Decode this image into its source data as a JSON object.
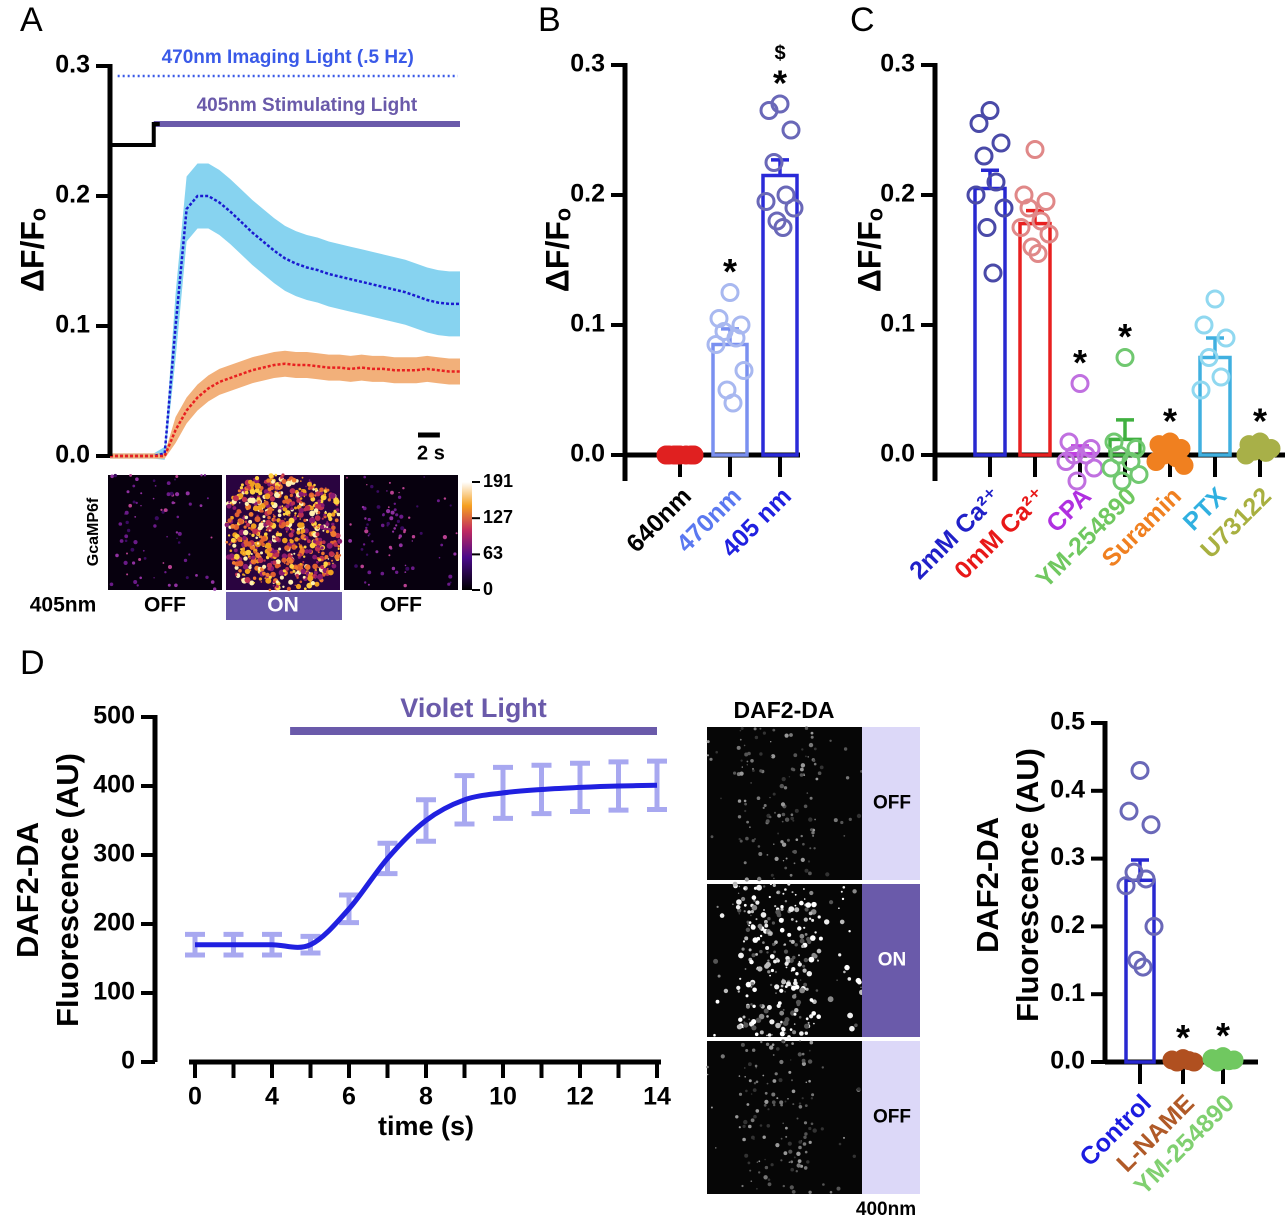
{
  "chart_data": [
    {
      "type": "line",
      "panel": "A",
      "ylabel": "ΔF/Fₒ",
      "xlim": [
        0,
        32
      ],
      "ylim": [
        0,
        0.3
      ],
      "yticks": [
        {
          "value": 0,
          "label": "0.0"
        },
        {
          "value": 0.1,
          "label": "0.1"
        },
        {
          "value": 0.2,
          "label": "0.2"
        },
        {
          "value": 0.3,
          "label": "0.3"
        }
      ],
      "x": [
        0,
        1,
        2,
        3,
        4,
        5,
        6,
        7,
        8,
        9,
        10,
        11,
        12,
        13,
        14,
        15,
        16,
        17,
        18,
        19,
        20,
        21,
        22,
        23,
        24,
        25,
        26,
        27,
        28,
        29,
        30,
        31,
        32
      ],
      "series": [
        {
          "color": "#1a1ad0",
          "band_color": "#87d3f0",
          "values": [
            0,
            0,
            0,
            0,
            0,
            0.002,
            0.1,
            0.19,
            0.2,
            0.2,
            0.195,
            0.188,
            0.18,
            0.172,
            0.165,
            0.158,
            0.152,
            0.148,
            0.145,
            0.143,
            0.14,
            0.138,
            0.136,
            0.134,
            0.132,
            0.13,
            0.128,
            0.126,
            0.123,
            0.12,
            0.118,
            0.117,
            0.117
          ],
          "errors": [
            0.002,
            0.002,
            0.002,
            0.002,
            0.002,
            0.005,
            0.025,
            0.025,
            0.025,
            0.025,
            0.025,
            0.025,
            0.025,
            0.025,
            0.025,
            0.025,
            0.025,
            0.025,
            0.025,
            0.025,
            0.025,
            0.025,
            0.025,
            0.025,
            0.025,
            0.025,
            0.025,
            0.025,
            0.025,
            0.025,
            0.025,
            0.025,
            0.025
          ]
        },
        {
          "color": "#e82020",
          "band_color": "#f2b07a",
          "values": [
            0,
            0,
            0,
            0,
            0,
            0,
            0.02,
            0.035,
            0.045,
            0.052,
            0.057,
            0.06,
            0.063,
            0.066,
            0.068,
            0.07,
            0.071,
            0.07,
            0.07,
            0.069,
            0.068,
            0.068,
            0.067,
            0.068,
            0.067,
            0.067,
            0.066,
            0.066,
            0.066,
            0.067,
            0.066,
            0.065,
            0.065
          ],
          "errors": [
            0.002,
            0.002,
            0.002,
            0.002,
            0.002,
            0.002,
            0.01,
            0.01,
            0.01,
            0.01,
            0.01,
            0.01,
            0.01,
            0.01,
            0.01,
            0.01,
            0.01,
            0.01,
            0.01,
            0.01,
            0.01,
            0.01,
            0.01,
            0.01,
            0.01,
            0.01,
            0.01,
            0.01,
            0.01,
            0.01,
            0.01,
            0.01,
            0.01
          ]
        }
      ],
      "lights": [
        {
          "label": "470nm Imaging Light (.5 Hz)",
          "color": "#3a5ae8",
          "start": 0.7,
          "end": 31.8
        },
        {
          "label": "405nm Stimulating Light",
          "color": "#6a5aaa",
          "start": 4,
          "end": 32
        }
      ],
      "scale_bar": {
        "length": 2,
        "label": "2 s"
      },
      "images": {
        "label": "GcaMP6f",
        "row_label": "405nm",
        "states": [
          "OFF",
          "ON",
          "OFF"
        ],
        "on_color": "#6a5aaa",
        "colorbar_lim": [
          0,
          191
        ],
        "colorbar_ticks": [
          191,
          127,
          63,
          0
        ]
      }
    },
    {
      "type": "bar",
      "panel": "B",
      "ylabel": "ΔF/Fₒ",
      "ylim": [
        -0.02,
        0.3
      ],
      "yticks": [
        {
          "value": 0,
          "label": "0.0"
        },
        {
          "value": 0.1,
          "label": "0.1"
        },
        {
          "value": 0.2,
          "label": "0.2"
        },
        {
          "value": 0.3,
          "label": "0.3"
        }
      ],
      "categories": [
        "640nm",
        "470nm",
        "405 nm"
      ],
      "values": [
        0,
        0.085,
        0.215
      ],
      "errors": [
        0,
        0.012,
        0.012
      ],
      "colors": [
        "#e02020",
        "#7a90f0",
        "#2a2ad8"
      ],
      "point_colors": [
        "#e02020",
        "#a8b8f0",
        "#6a68b8"
      ],
      "label_colors": [
        "#000000",
        "#5a78f0",
        "#2020e0"
      ],
      "filled": [
        true,
        false,
        false
      ],
      "points": [
        [
          0,
          0,
          0,
          0,
          0,
          0,
          0,
          0
        ],
        [
          0.125,
          0.105,
          0.1,
          0.095,
          0.09,
          0.085,
          0.065,
          0.05,
          0.04
        ],
        [
          0.27,
          0.265,
          0.25,
          0.225,
          0.2,
          0.195,
          0.19,
          0.18,
          0.175
        ]
      ],
      "significance": [
        {
          "index": 1,
          "text": "*"
        },
        {
          "index": 2,
          "text": "*"
        },
        {
          "index": 2,
          "text": "$"
        }
      ]
    },
    {
      "type": "bar",
      "panel": "C",
      "ylabel": "ΔF/Fₒ",
      "ylim": [
        -0.02,
        0.3
      ],
      "yticks": [
        {
          "value": 0,
          "label": "0.0"
        },
        {
          "value": 0.1,
          "label": "0.1"
        },
        {
          "value": 0.2,
          "label": "0.2"
        },
        {
          "value": 0.3,
          "label": "0.3"
        }
      ],
      "categories": [
        "2mM Ca²⁺",
        "0mM Ca²⁺",
        "CPA",
        "YM-254890",
        "Suramin",
        "PTX",
        "U73122"
      ],
      "values": [
        0.205,
        0.178,
        0.001,
        0.012,
        0.004,
        0.075,
        0.005
      ],
      "errors": [
        0.014,
        0.01,
        0.006,
        0.015,
        0.004,
        0.015,
        0.002
      ],
      "colors": [
        "#2828d0",
        "#e82020",
        "#c040e0",
        "#40b040",
        "#f08020",
        "#40b0e0",
        "#a0a840"
      ],
      "point_colors": [
        "#4a4aa8",
        "#e08888",
        "#c070e0",
        "#70c870",
        "#f08020",
        "#90d8f0",
        "#a8b048"
      ],
      "label_colors": [
        "#2020c8",
        "#e81818",
        "#b030e0",
        "#70c860",
        "#f08020",
        "#30b0e0",
        "#a8b040"
      ],
      "filled": [
        false,
        false,
        false,
        false,
        true,
        false,
        true
      ],
      "points": [
        [
          0.265,
          0.255,
          0.24,
          0.23,
          0.21,
          0.2,
          0.19,
          0.175,
          0.14
        ],
        [
          0.235,
          0.2,
          0.195,
          0.19,
          0.18,
          0.175,
          0.17,
          0.16,
          0.155
        ],
        [
          0.055,
          0.01,
          0.005,
          0,
          0,
          -0.005,
          -0.01,
          -0.02
        ],
        [
          0.075,
          0.01,
          0.005,
          0,
          -0.005,
          -0.01,
          -0.015,
          -0.02
        ],
        [
          0.01,
          0.008,
          0.005,
          0,
          -0.002,
          -0.005,
          -0.008
        ],
        [
          0.12,
          0.1,
          0.09,
          0.075,
          0.06,
          0.05
        ],
        [
          0.01,
          0.008,
          0.005,
          0.003,
          0.002,
          0
        ]
      ],
      "significance": [
        {
          "index": 2,
          "text": "*"
        },
        {
          "index": 3,
          "text": "*"
        },
        {
          "index": 4,
          "text": "*"
        },
        {
          "index": 6,
          "text": "*"
        }
      ]
    },
    {
      "type": "line",
      "panel": "D",
      "ylabel": [
        "DAF2-DA",
        "Fluorescence (AU)"
      ],
      "xlabel": "time (s)",
      "ylim": [
        0,
        500
      ],
      "yticks": [
        0,
        100,
        200,
        300,
        400,
        500
      ],
      "categories": [
        "0",
        null,
        "4",
        null,
        "6",
        null,
        "8",
        null,
        "10",
        null,
        "12",
        null,
        "14"
      ],
      "values": [
        170,
        170,
        170,
        170,
        222,
        295,
        350,
        380,
        390,
        395,
        398,
        400,
        401
      ],
      "errors": [
        15,
        15,
        15,
        12,
        20,
        22,
        30,
        35,
        37,
        35,
        35,
        35,
        35
      ],
      "color": "#2020e0",
      "error_color": "#a8a8f0",
      "light": {
        "label": "Violet Light",
        "color": "#6a5aaa",
        "start": 2.47,
        "end": 12
      },
      "image_stack": {
        "title": "DAF2-DA",
        "states": [
          "OFF",
          "ON",
          "OFF"
        ],
        "wavelength": "400nm",
        "off_color": "#dcd8f8",
        "on_color": "#6a5aaa"
      }
    },
    {
      "type": "bar",
      "ylabel": [
        "DAF2-DA",
        "Fluorescence (AU)"
      ],
      "ylim": [
        0,
        0.5
      ],
      "yticks": [
        {
          "value": 0,
          "label": "0.0"
        },
        {
          "value": 0.1,
          "label": "0.1"
        },
        {
          "value": 0.2,
          "label": "0.2"
        },
        {
          "value": 0.3,
          "label": "0.3"
        },
        {
          "value": 0.4,
          "label": "0.4"
        },
        {
          "value": 0.5,
          "label": "0.5"
        }
      ],
      "categories": [
        "Control",
        "L-NAME",
        "YM-254890"
      ],
      "values": [
        0.268,
        0.002,
        0.004
      ],
      "errors": [
        0.03,
        0.002,
        0.002
      ],
      "colors": [
        "#2828d0",
        "#b05020",
        "#60c050"
      ],
      "point_colors": [
        "#6a68b8",
        "#b05020",
        "#70c860"
      ],
      "label_colors": [
        "#1c1ce0",
        "#b05a28",
        "#80d070"
      ],
      "filled": [
        false,
        true,
        true
      ],
      "points": [
        [
          0.43,
          0.37,
          0.35,
          0.28,
          0.27,
          0.26,
          0.2,
          0.15,
          0.14
        ],
        [
          0.005,
          0.003,
          0,
          0,
          0.002
        ],
        [
          0.008,
          0.005,
          0.003,
          0,
          0.002
        ]
      ],
      "significance": [
        {
          "index": 1,
          "text": "*"
        },
        {
          "index": 2,
          "text": "*"
        }
      ]
    }
  ]
}
